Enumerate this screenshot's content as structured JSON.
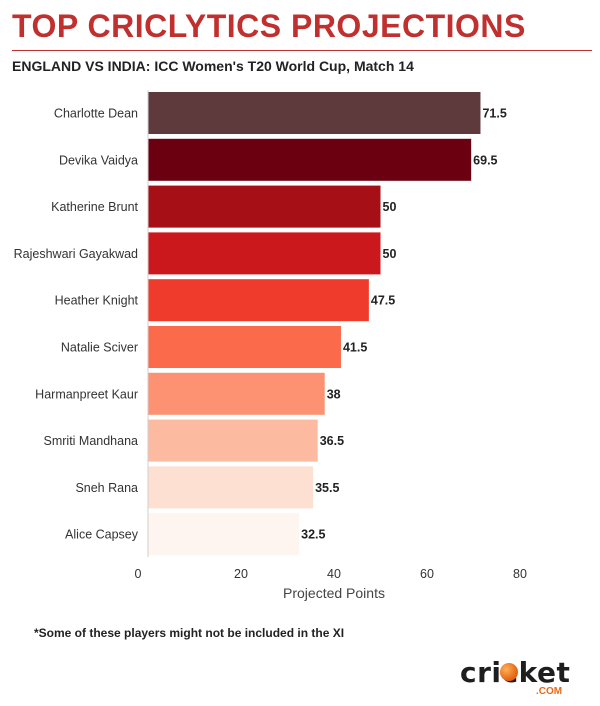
{
  "header": {
    "title": "TOP CRICLYTICS PROJECTIONS",
    "subtitle": "ENGLAND VS INDIA: ICC Women's T20 World Cup, Match 14"
  },
  "footer": {
    "note": "*Some of these players might not be included in the XI",
    "logo_text": "cricket",
    "logo_suffix": ".COM",
    "logo_icon": "cricket-ball-icon"
  },
  "chart_data": {
    "type": "bar",
    "orientation": "horizontal",
    "categories": [
      "Charlotte Dean",
      "Devika Vaidya",
      "Katherine Brunt",
      "Rajeshwari Gayakwad",
      "Heather Knight",
      "Natalie Sciver",
      "Harmanpreet Kaur",
      "Smriti Mandhana",
      "Sneh Rana",
      "Alice Capsey"
    ],
    "values": [
      71.5,
      69.5,
      50,
      50,
      47.5,
      41.5,
      38,
      36.5,
      35.5,
      32.5
    ],
    "value_labels": [
      "71.5",
      "69.5",
      "50",
      "50",
      "47.5",
      "41.5",
      "38",
      "36.5",
      "35.5",
      "32.5"
    ],
    "colors": [
      "#5e3a3c",
      "#6a0010",
      "#a50f15",
      "#cb181d",
      "#ef3b2c",
      "#fb6a4a",
      "#fc9272",
      "#fcbba1",
      "#fee0d2",
      "#fff5f0"
    ],
    "xlabel": "Projected Points",
    "ylabel": "",
    "xlim": [
      0,
      80
    ],
    "xticks": [
      0,
      20,
      40,
      60,
      80
    ],
    "grid": false,
    "legend": "none"
  }
}
